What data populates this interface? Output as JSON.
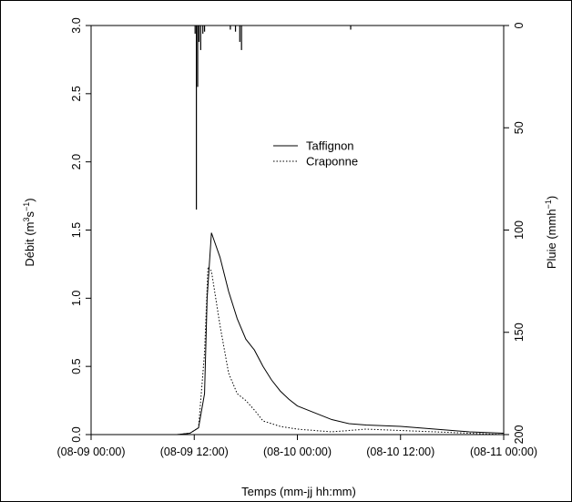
{
  "chart_data": {
    "type": "line",
    "xlabel": "Temps (mm-jj hh:mm)",
    "ylabel_left": {
      "base": "Débit (m",
      "sup1": "3",
      "mid": "s",
      "sup2": "−1",
      "end": ")"
    },
    "ylabel_right": {
      "base": "Pluie (mmh",
      "sup": "−1",
      "end": ")"
    },
    "xlim": [
      0,
      48
    ],
    "x_ticks": [
      {
        "value": 0,
        "label": "(08-09 00:00)"
      },
      {
        "value": 12,
        "label": "(08-09 12:00)"
      },
      {
        "value": 24,
        "label": "(08-10 00:00)"
      },
      {
        "value": 36,
        "label": "(08-10 12:00)"
      },
      {
        "value": 48,
        "label": "(08-11 00:00)"
      }
    ],
    "ylim_left": [
      0,
      3
    ],
    "y_ticks_left": [
      "0.0",
      "0.5",
      "1.0",
      "1.5",
      "2.0",
      "2.5",
      "3.0"
    ],
    "ylim_right": [
      200,
      0
    ],
    "y_ticks_right": [
      "0",
      "50",
      "100",
      "150",
      "200"
    ],
    "legend": {
      "position": "center",
      "entries": [
        {
          "name": "Taffignon",
          "style": "solid"
        },
        {
          "name": "Craponne",
          "style": "dotted"
        }
      ]
    },
    "series": [
      {
        "name": "Taffignon",
        "style": "solid",
        "x": [
          0,
          10,
          11.5,
          12.5,
          13.2,
          13.5,
          14,
          15,
          16,
          17,
          18,
          19,
          20,
          21,
          22,
          23,
          24,
          26,
          28,
          30,
          32,
          36,
          40,
          44,
          48
        ],
        "y": [
          0,
          0,
          0.01,
          0.05,
          0.3,
          1.0,
          1.48,
          1.3,
          1.05,
          0.85,
          0.7,
          0.62,
          0.5,
          0.4,
          0.32,
          0.26,
          0.21,
          0.16,
          0.11,
          0.08,
          0.07,
          0.06,
          0.04,
          0.02,
          0.01
        ]
      },
      {
        "name": "Craponne",
        "style": "dotted",
        "x": [
          0,
          10,
          11.5,
          12.5,
          13.2,
          13.6,
          14,
          15,
          16,
          17,
          18,
          19,
          20,
          22,
          24,
          28,
          32,
          36,
          40,
          44,
          48
        ],
        "y": [
          0,
          0,
          0.01,
          0.05,
          0.6,
          1.23,
          1.2,
          0.8,
          0.45,
          0.3,
          0.25,
          0.18,
          0.1,
          0.06,
          0.04,
          0.02,
          0.04,
          0.03,
          0.02,
          0.01,
          0
        ]
      }
    ],
    "rainfall": {
      "units": "mmh-1",
      "axis": "right",
      "bars": [
        {
          "x": 12.1,
          "value": 4
        },
        {
          "x": 12.25,
          "value": 90
        },
        {
          "x": 12.4,
          "value": 30
        },
        {
          "x": 12.55,
          "value": 8
        },
        {
          "x": 12.75,
          "value": 12
        },
        {
          "x": 13.0,
          "value": 4
        },
        {
          "x": 13.2,
          "value": 3
        },
        {
          "x": 16.2,
          "value": 2
        },
        {
          "x": 16.8,
          "value": 3
        },
        {
          "x": 17.3,
          "value": 8
        },
        {
          "x": 17.5,
          "value": 12
        },
        {
          "x": 30.2,
          "value": 2
        }
      ]
    }
  }
}
